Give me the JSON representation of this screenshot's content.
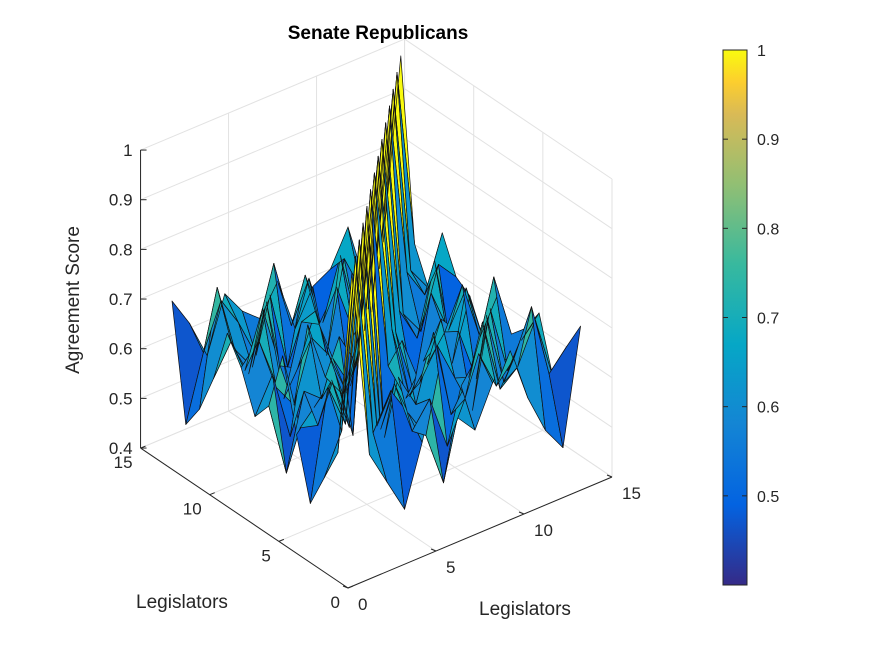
{
  "chart_data": {
    "type": "surface3d",
    "title": "Senate Republicans",
    "xlabel": "Legislators",
    "ylabel": "Legislators",
    "zlabel": "Agreement Score",
    "x_ticks": [
      "0",
      "5",
      "10",
      "15"
    ],
    "y_ticks": [
      "0",
      "5",
      "10",
      "15"
    ],
    "z_ticks": [
      "0.4",
      "0.5",
      "0.6",
      "0.7",
      "0.8",
      "0.9",
      "1"
    ],
    "xlim": [
      0,
      15
    ],
    "ylim": [
      0,
      15
    ],
    "zlim": [
      0.4,
      1
    ],
    "grid": true,
    "colormap": "parula",
    "colorbar": {
      "location": "right",
      "ticks": [
        "0.5",
        "0.6",
        "0.7",
        "0.8",
        "0.9",
        "1"
      ],
      "limits": [
        0.4,
        1
      ]
    },
    "n_legislators": 14,
    "matrix": [
      [
        1.0,
        0.62,
        0.55,
        0.48,
        0.6,
        0.74,
        0.62,
        0.58,
        0.66,
        0.71,
        0.6,
        0.52,
        0.47,
        0.7
      ],
      [
        0.62,
        1.0,
        0.63,
        0.7,
        0.64,
        0.58,
        0.47,
        0.65,
        0.7,
        0.62,
        0.66,
        0.75,
        0.6,
        0.64
      ],
      [
        0.55,
        0.63,
        1.0,
        0.61,
        0.68,
        0.57,
        0.62,
        0.51,
        0.59,
        0.73,
        0.58,
        0.61,
        0.69,
        0.56
      ],
      [
        0.48,
        0.7,
        0.61,
        1.0,
        0.57,
        0.66,
        0.59,
        0.72,
        0.54,
        0.6,
        0.71,
        0.56,
        0.63,
        0.67
      ],
      [
        0.6,
        0.64,
        0.68,
        0.57,
        1.0,
        0.52,
        0.7,
        0.6,
        0.66,
        0.58,
        0.5,
        0.69,
        0.55,
        0.62
      ],
      [
        0.74,
        0.58,
        0.57,
        0.66,
        0.52,
        1.0,
        0.63,
        0.55,
        0.61,
        0.68,
        0.64,
        0.53,
        0.72,
        0.59
      ],
      [
        0.62,
        0.47,
        0.62,
        0.59,
        0.7,
        0.63,
        1.0,
        0.67,
        0.52,
        0.57,
        0.62,
        0.7,
        0.58,
        0.65
      ],
      [
        0.58,
        0.65,
        0.51,
        0.72,
        0.6,
        0.55,
        0.67,
        1.0,
        0.63,
        0.5,
        0.68,
        0.59,
        0.66,
        0.54
      ],
      [
        0.66,
        0.7,
        0.59,
        0.54,
        0.66,
        0.61,
        0.52,
        0.63,
        1.0,
        0.64,
        0.57,
        0.71,
        0.49,
        0.61
      ],
      [
        0.71,
        0.62,
        0.73,
        0.6,
        0.58,
        0.68,
        0.57,
        0.5,
        0.64,
        1.0,
        0.6,
        0.55,
        0.67,
        0.63
      ],
      [
        0.6,
        0.66,
        0.58,
        0.71,
        0.5,
        0.64,
        0.62,
        0.68,
        0.57,
        0.6,
        1.0,
        0.65,
        0.59,
        0.7
      ],
      [
        0.52,
        0.75,
        0.61,
        0.56,
        0.69,
        0.53,
        0.7,
        0.59,
        0.71,
        0.55,
        0.65,
        1.0,
        0.62,
        0.57
      ],
      [
        0.47,
        0.6,
        0.69,
        0.63,
        0.55,
        0.72,
        0.58,
        0.66,
        0.49,
        0.67,
        0.59,
        0.62,
        1.0,
        0.64
      ],
      [
        0.7,
        0.64,
        0.56,
        0.67,
        0.62,
        0.59,
        0.65,
        0.54,
        0.61,
        0.63,
        0.7,
        0.57,
        0.64,
        1.0
      ]
    ]
  }
}
